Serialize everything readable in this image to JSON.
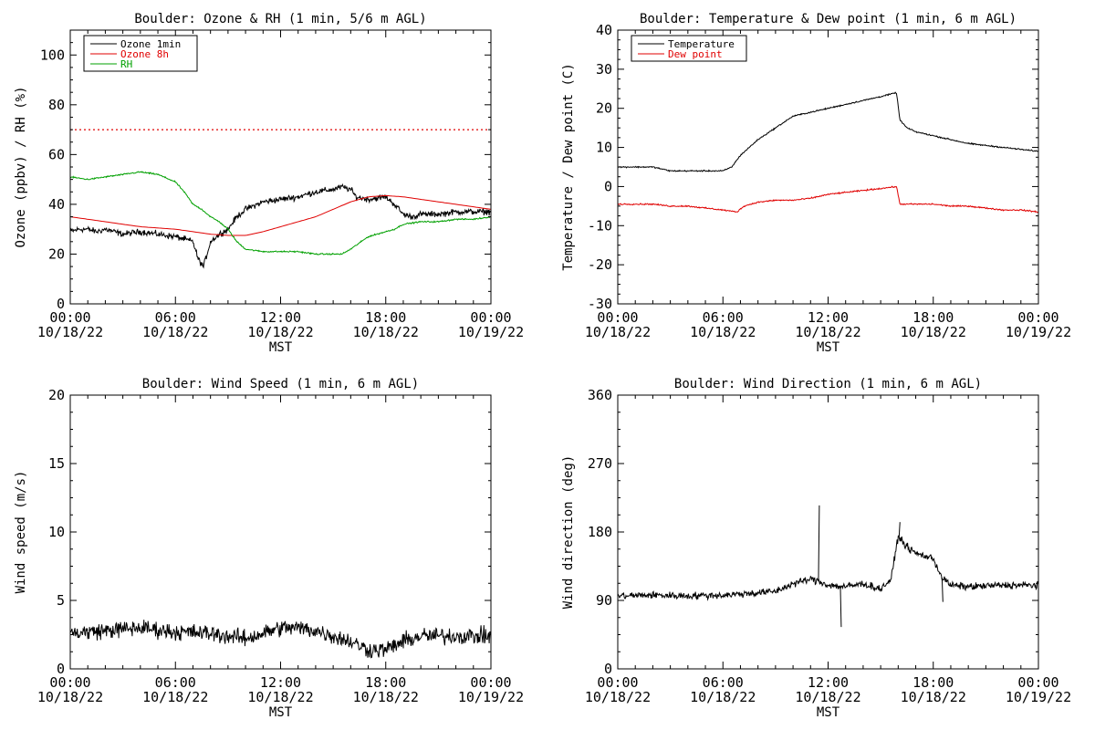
{
  "colors": {
    "black": "#000000",
    "red": "#e00000",
    "green": "#00a000"
  },
  "chart_data": [
    {
      "type": "line",
      "title": "Boulder: Ozone & RH (1 min, 5/6 m AGL)",
      "xlabel": "MST",
      "ylabel": "Ozone (ppbv) / RH (%)",
      "xlim": [
        0,
        24
      ],
      "ylim": [
        0,
        110
      ],
      "yticks": [
        0,
        20,
        40,
        60,
        80,
        100
      ],
      "xticks": [
        {
          "time": "00:00",
          "date": "10/18/22"
        },
        {
          "time": "06:00",
          "date": "10/18/22"
        },
        {
          "time": "12:00",
          "date": "10/18/22"
        },
        {
          "time": "18:00",
          "date": "10/18/22"
        },
        {
          "time": "00:00",
          "date": "10/19/22"
        }
      ],
      "legend_position": "top-left",
      "hline": {
        "y": 70,
        "color": "#e00000",
        "style": "dotted"
      },
      "series": [
        {
          "name": "Ozone 1min",
          "color": "#000000",
          "noise": 1.8,
          "x": [
            0,
            0.5,
            1,
            1.5,
            2,
            3,
            4,
            5,
            6,
            6.5,
            7,
            7.3,
            7.6,
            8,
            8.5,
            9,
            9.5,
            10,
            11,
            12,
            13,
            14,
            15,
            15.5,
            16,
            16.3,
            17,
            18,
            18.5,
            19,
            19.5,
            20,
            21,
            22,
            23,
            24
          ],
          "y": [
            29,
            30,
            30,
            29,
            30,
            28,
            29,
            28,
            27,
            26,
            25,
            18,
            15,
            25,
            28,
            30,
            35,
            38,
            41,
            42,
            43,
            45,
            46,
            47,
            46,
            43,
            42,
            43,
            40,
            36,
            35,
            36,
            36,
            37,
            37,
            37
          ]
        },
        {
          "name": "Ozone 8h",
          "color": "#e00000",
          "noise": 0,
          "x": [
            0,
            1,
            2,
            3,
            4,
            5,
            6,
            7,
            8,
            9,
            10,
            11,
            12,
            13,
            14,
            15,
            16,
            17,
            18,
            19,
            20,
            21,
            22,
            23,
            24
          ],
          "y": [
            35,
            34,
            33,
            32,
            31,
            30.5,
            30,
            29,
            28,
            27.5,
            27.5,
            29,
            31,
            33,
            35,
            38,
            41,
            43,
            43.5,
            43,
            42,
            41,
            40,
            39,
            38
          ]
        },
        {
          "name": "RH",
          "color": "#00a000",
          "noise": 0.4,
          "x": [
            0,
            1,
            2,
            3,
            4,
            5,
            6,
            6.5,
            7,
            7.5,
            8,
            8.5,
            9,
            9.5,
            10,
            11,
            12,
            13,
            14,
            15,
            15.5,
            16,
            17,
            18,
            18.5,
            19,
            20,
            21,
            22,
            23,
            24
          ],
          "y": [
            51,
            50,
            51,
            52,
            53,
            52,
            49,
            45,
            40,
            38,
            35,
            33,
            30,
            25,
            22,
            21,
            21,
            21,
            20,
            20,
            20,
            22,
            27,
            29,
            30,
            32,
            33,
            33,
            34,
            34,
            35
          ]
        }
      ]
    },
    {
      "type": "line",
      "title": "Boulder: Temperature & Dew point (1 min, 6 m AGL)",
      "xlabel": "MST",
      "ylabel": "Temperature / Dew point (C)",
      "xlim": [
        0,
        24
      ],
      "ylim": [
        -30,
        40
      ],
      "yticks": [
        -30,
        -20,
        -10,
        0,
        10,
        20,
        30,
        40
      ],
      "xticks": [
        {
          "time": "00:00",
          "date": "10/18/22"
        },
        {
          "time": "06:00",
          "date": "10/18/22"
        },
        {
          "time": "12:00",
          "date": "10/18/22"
        },
        {
          "time": "18:00",
          "date": "10/18/22"
        },
        {
          "time": "00:00",
          "date": "10/19/22"
        }
      ],
      "legend_position": "top-left",
      "series": [
        {
          "name": "Temperature",
          "color": "#000000",
          "noise": 0.25,
          "x": [
            0,
            1,
            2,
            3,
            4,
            5,
            6,
            6.5,
            7,
            8,
            9,
            10,
            11,
            12,
            13,
            14,
            15,
            15.9,
            16.1,
            16.5,
            17,
            18,
            19,
            20,
            21,
            22,
            23,
            24
          ],
          "y": [
            5,
            5,
            5,
            4,
            4,
            4,
            4,
            5,
            8,
            12,
            15,
            18,
            19,
            20,
            21,
            22,
            23,
            24,
            17,
            15,
            14,
            13,
            12,
            11,
            10.5,
            10,
            9.5,
            9
          ]
        },
        {
          "name": "Dew point",
          "color": "#e00000",
          "noise": 0.25,
          "x": [
            0,
            1,
            2,
            3,
            4,
            5,
            6,
            6.8,
            7.2,
            8,
            9,
            10,
            11,
            12,
            13,
            14,
            15,
            15.9,
            16.1,
            17,
            18,
            19,
            20,
            21,
            22,
            23,
            24
          ],
          "y": [
            -4.5,
            -4.5,
            -4.5,
            -5,
            -5,
            -5.5,
            -6,
            -6.5,
            -5,
            -4,
            -3.5,
            -3.5,
            -3,
            -2,
            -1.5,
            -1,
            -0.5,
            0,
            -4.5,
            -4.5,
            -4.5,
            -5,
            -5,
            -5.5,
            -6,
            -6,
            -6.5
          ]
        }
      ]
    },
    {
      "type": "line",
      "title": "Boulder: Wind Speed (1 min, 6 m AGL)",
      "xlabel": "MST",
      "ylabel": "Wind speed (m/s)",
      "xlim": [
        0,
        24
      ],
      "ylim": [
        0,
        20
      ],
      "yticks": [
        0,
        5,
        10,
        15,
        20
      ],
      "xticks": [
        {
          "time": "00:00",
          "date": "10/18/22"
        },
        {
          "time": "06:00",
          "date": "10/18/22"
        },
        {
          "time": "12:00",
          "date": "10/18/22"
        },
        {
          "time": "18:00",
          "date": "10/18/22"
        },
        {
          "time": "00:00",
          "date": "10/19/22"
        }
      ],
      "series": [
        {
          "name": "",
          "color": "#000000",
          "noise": 0.9,
          "x": [
            0,
            2,
            4,
            6,
            8,
            10,
            11,
            12,
            13,
            14,
            15,
            16,
            17,
            18,
            19,
            20,
            22,
            24
          ],
          "y": [
            2.6,
            2.8,
            3.0,
            2.7,
            2.6,
            2.2,
            2.6,
            3.0,
            3.0,
            2.8,
            2.4,
            2.0,
            1.4,
            1.4,
            2.0,
            2.4,
            2.4,
            2.4
          ]
        }
      ]
    },
    {
      "type": "line",
      "title": "Boulder: Wind Direction (1 min, 6 m AGL)",
      "xlabel": "MST",
      "ylabel": "Wind direction (deg)",
      "xlim": [
        0,
        24
      ],
      "ylim": [
        0,
        360
      ],
      "yticks": [
        0,
        90,
        180,
        270,
        360
      ],
      "xticks": [
        {
          "time": "00:00",
          "date": "10/18/22"
        },
        {
          "time": "06:00",
          "date": "10/18/22"
        },
        {
          "time": "12:00",
          "date": "10/18/22"
        },
        {
          "time": "18:00",
          "date": "10/18/22"
        },
        {
          "time": "00:00",
          "date": "10/19/22"
        }
      ],
      "series": [
        {
          "name": "",
          "color": "#000000",
          "noise": 7,
          "x": [
            0,
            2,
            4,
            6,
            8,
            9,
            10,
            11,
            11.5,
            12,
            13,
            14,
            15,
            15.6,
            16,
            16.5,
            17,
            18,
            18.5,
            19,
            20,
            22,
            24
          ],
          "y": [
            96,
            97,
            96,
            97,
            100,
            102,
            112,
            118,
            115,
            110,
            108,
            112,
            105,
            118,
            175,
            160,
            152,
            145,
            120,
            110,
            108,
            110,
            110
          ]
        }
      ],
      "annotations": [
        {
          "x": 11.45,
          "y": 215
        },
        {
          "x": 12.7,
          "y": 55
        },
        {
          "x": 16.05,
          "y": 193
        },
        {
          "x": 18.5,
          "y": 88
        }
      ]
    }
  ]
}
